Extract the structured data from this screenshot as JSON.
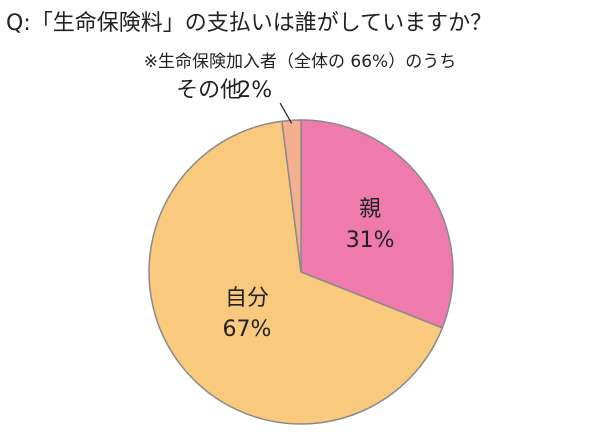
{
  "chart_data": {
    "type": "pie",
    "title": "Q:「生命保険料」の支払いは誰がしていますか？",
    "subtitle": "※生命保険加入者（全体の 66%）のうち",
    "categories": [
      "親",
      "自分",
      "その他"
    ],
    "values": [
      31,
      67,
      2
    ],
    "value_labels": [
      "31%",
      "67%",
      "2%"
    ],
    "colors": [
      "#ee7bac",
      "#f9c97e",
      "#f4b08e"
    ]
  }
}
